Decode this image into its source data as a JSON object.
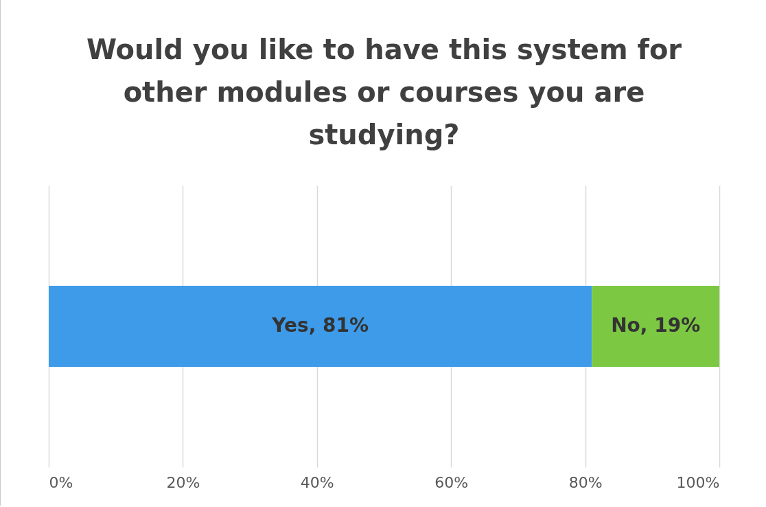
{
  "chart_data": {
    "type": "bar",
    "title": "Would you like to have this system for other modules or courses you are studying?",
    "orientation": "horizontal",
    "stacked": true,
    "categories": [
      null
    ],
    "series": [
      {
        "color": "#3d9be9",
        "values": [
          81
        ],
        "value_labels": [
          "Yes, 81%"
        ]
      },
      {
        "color": "#7dc843",
        "values": [
          19
        ],
        "value_labels": [
          "No, 19%"
        ]
      }
    ],
    "xlim": [
      0,
      100
    ],
    "xticks": [
      {
        "value": 0,
        "label": "0%"
      },
      {
        "value": 20,
        "label": "20%"
      },
      {
        "value": 40,
        "label": "40%"
      },
      {
        "value": 60,
        "label": "60%"
      },
      {
        "value": 80,
        "label": "80%"
      },
      {
        "value": 100,
        "label": "100%"
      }
    ],
    "grid": "x"
  }
}
